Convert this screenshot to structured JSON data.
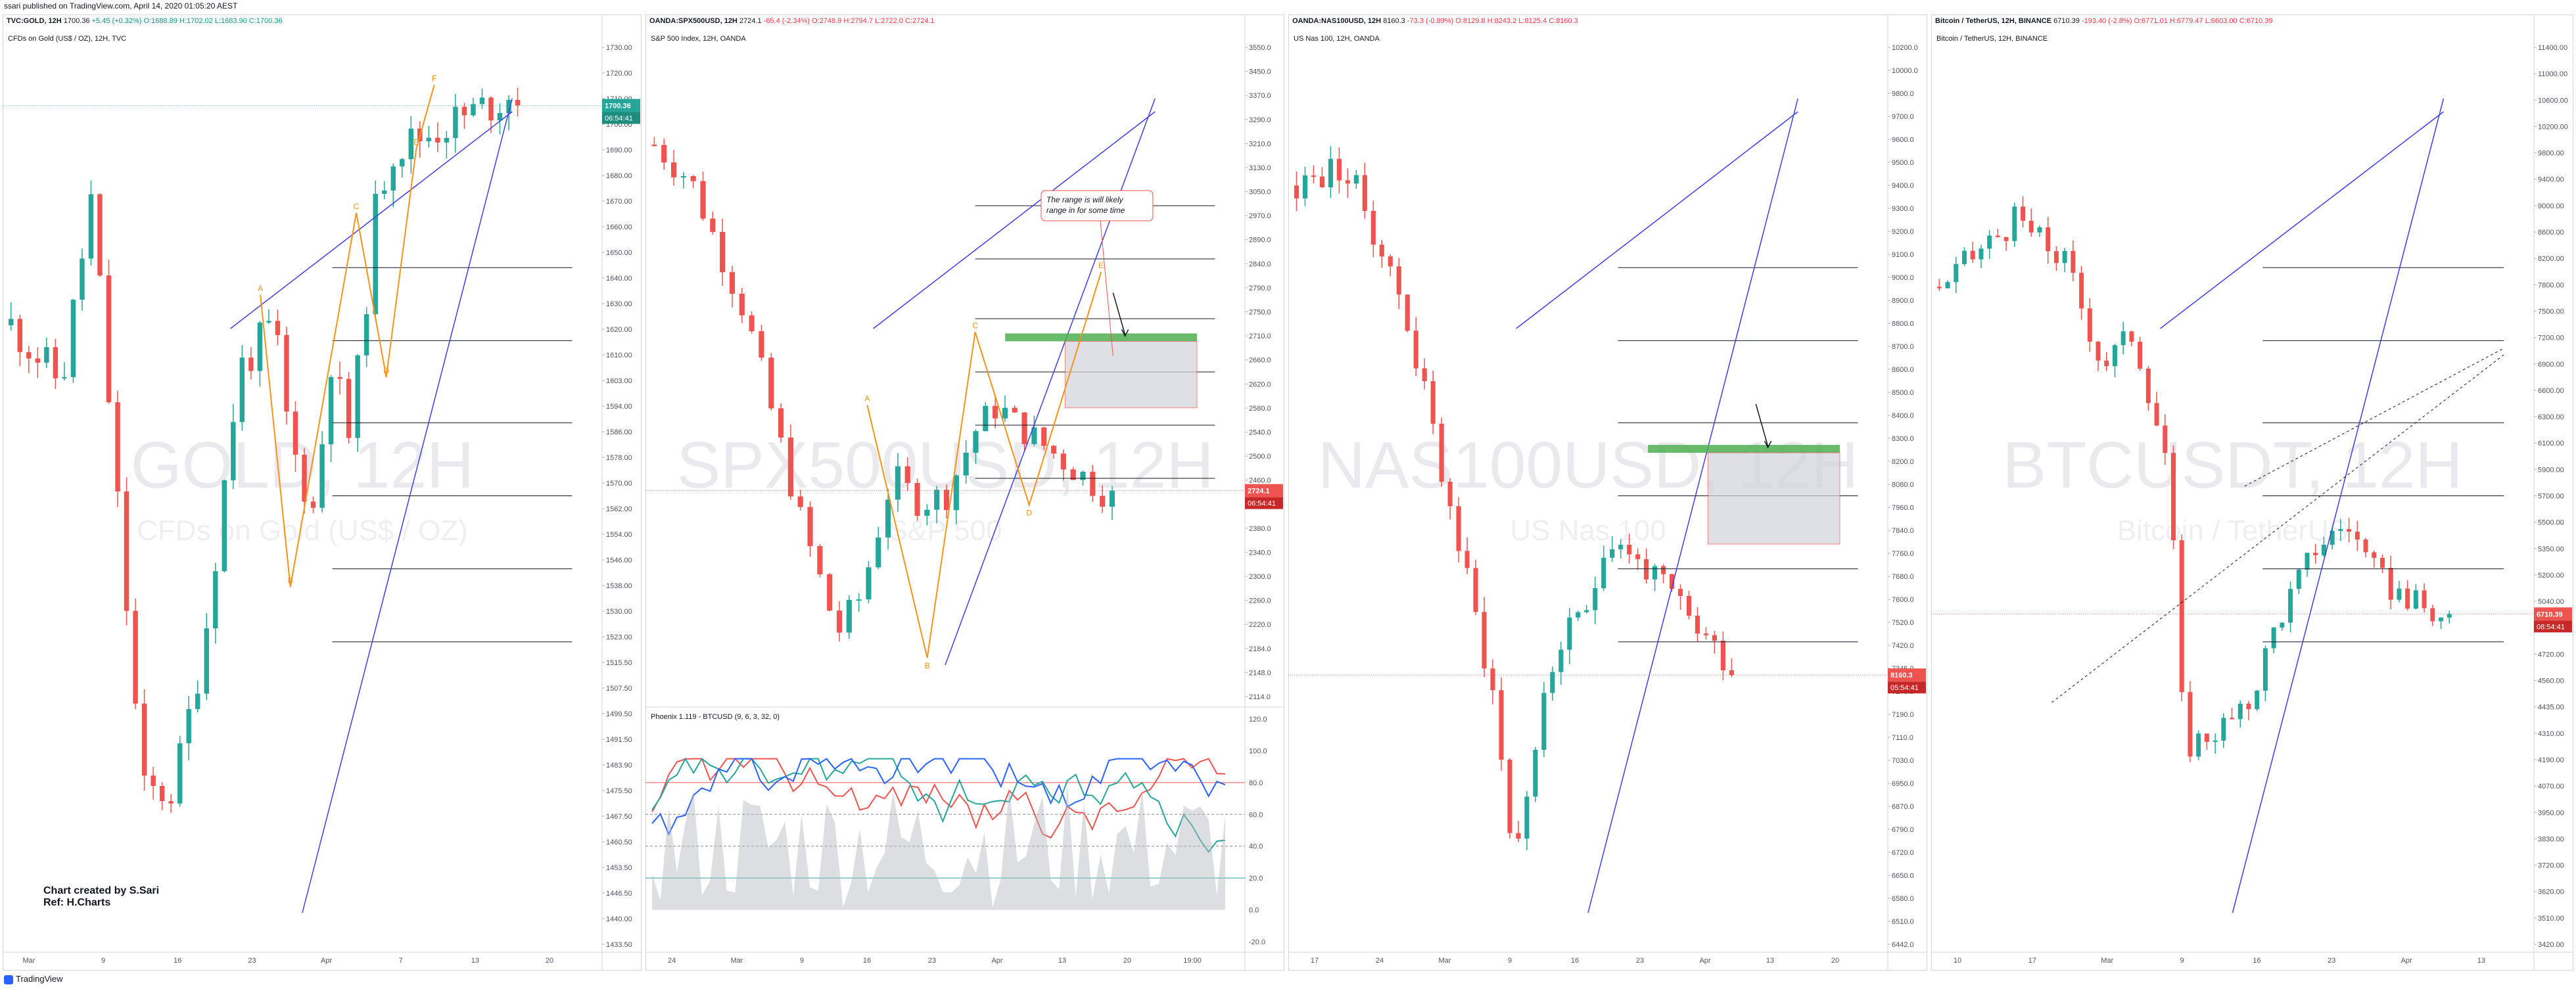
{
  "publisher_line": "ssari published on TradingView.com, April 14, 2020 01:05:20 AEST",
  "footer_brand": "TradingView",
  "colors": {
    "up": "#26a69a",
    "down": "#ef5350",
    "trend": "#3f3fe6",
    "orange": "#f7931a",
    "green_zone": "#4caf50",
    "grey_zone": "#d1d4dc"
  },
  "chart_data": [
    {
      "type": "candlestick",
      "symbol": "TVC:GOLD",
      "interval": "12H",
      "header_quote": {
        "symbol": "TVC:GOLD, 12H",
        "last": "1700.36",
        "change": "+5.45 (+0.32%)",
        "o": "O:1688.89",
        "h": "H:1702.02",
        "l": "L:1683.90",
        "c": "C:1700.36"
      },
      "inner_title": "CFDs on Gold (US$ / OZ), 12H, TVC",
      "watermark": "GOLD, 12H",
      "watermark_sub": "CFDs on Gold (US$ / OZ)",
      "y_ticks": [
        "1730.00",
        "1720.00",
        "1710.00",
        "1700.00",
        "1690.00",
        "1680.00",
        "1670.00",
        "1660.00",
        "1650.00",
        "1640.00",
        "1630.00",
        "1620.00",
        "1610.00",
        "1603.00",
        "1594.00",
        "1586.00",
        "1578.00",
        "1570.00",
        "1562.00",
        "1554.00",
        "1546.00",
        "1538.00",
        "1530.00",
        "1523.00",
        "1515.50",
        "1507.50",
        "1499.50",
        "1491.50",
        "1483.90",
        "1475.50",
        "1467.50",
        "1460.50",
        "1453.50",
        "1446.50",
        "1440.00",
        "1433.50"
      ],
      "x_ticks": [
        "Mar",
        "9",
        "16",
        "23",
        "Apr",
        "7",
        "13",
        "20"
      ],
      "last_price": "1700.36",
      "countdown": "06:54:41",
      "ylim": [
        1425,
        1738
      ],
      "annotations": [
        "A",
        "B",
        "C",
        "D",
        "E",
        "F"
      ],
      "note_line1": "Chart created by S.Sari",
      "note_line2": "Ref: H.Charts"
    },
    {
      "type": "candlestick",
      "symbol": "OANDA:SPX500USD",
      "interval": "12H",
      "header_quote": {
        "symbol": "OANDA:SPX500USD, 12H",
        "last": "2724.1",
        "change": "-65.4 (-2.34%)",
        "o": "O:2748.9",
        "h": "H:2794.7",
        "l": "L:2722.0",
        "c": "C:2724.1"
      },
      "inner_title": "S&P 500 Index, 12H, OANDA",
      "watermark": "SPX500USD, 12H",
      "watermark_sub": "S&P 500",
      "y_ticks": [
        "3550.0",
        "3450.0",
        "3370.0",
        "3290.0",
        "3210.0",
        "3130.0",
        "3050.0",
        "2970.0",
        "2890.0",
        "2840.0",
        "2790.0",
        "2750.0",
        "2710.0",
        "2660.0",
        "2620.0",
        "2580.0",
        "2540.0",
        "2500.0",
        "2460.0",
        "2420.0",
        "2380.0",
        "2340.0",
        "2300.0",
        "2260.0",
        "2220.0",
        "2184.0",
        "2148.0",
        "2114.0"
      ],
      "x_ticks": [
        "24",
        "Mar",
        "9",
        "16",
        "23",
        "Apr",
        "13",
        "20",
        "19:00"
      ],
      "last_price": "2724.1",
      "countdown": "06:54:41",
      "ylim": [
        2090,
        3575
      ],
      "callout": "The range is will likely range in for some time",
      "annotations": [
        "A",
        "B",
        "C",
        "D",
        "E"
      ],
      "indicator": {
        "title": "Phoenix 1.119 - BTCUSD (9, 6, 3, 32, 0)",
        "y_ticks": [
          "120.0",
          "100.0",
          "80.0",
          "60.0",
          "40.0",
          "20.0",
          "0.0",
          "-20.0"
        ],
        "ylim": [
          -25,
          125
        ]
      }
    },
    {
      "type": "candlestick",
      "symbol": "OANDA:NAS100USD",
      "interval": "12H",
      "header_quote": {
        "symbol": "OANDA:NAS100USD, 12H",
        "last": "8160.3",
        "change": "-73.3 (-0.89%)",
        "o": "O:8129.8",
        "h": "H:8243.2",
        "l": "L:8125.4",
        "c": "C:8160.3"
      },
      "inner_title": "US Nas 100, 12H, OANDA",
      "watermark": "NAS100USD, 12H",
      "watermark_sub": "US Nas 100",
      "y_ticks": [
        "10200.0",
        "10000.0",
        "9800.0",
        "9700.0",
        "9600.0",
        "9500.0",
        "9400.0",
        "9300.0",
        "9200.0",
        "9100.0",
        "9000.0",
        "8900.0",
        "8800.0",
        "8700.0",
        "8600.0",
        "8500.0",
        "8400.0",
        "8300.0",
        "8200.0",
        "8080.0",
        "7960.0",
        "7840.0",
        "7760.0",
        "7680.0",
        "7600.0",
        "7520.0",
        "7420.0",
        "7345.0",
        "7270.0",
        "7190.0",
        "7110.0",
        "7030.0",
        "6950.0",
        "6870.0",
        "6790.0",
        "6720.0",
        "6650.0",
        "6580.0",
        "6510.0",
        "6442.0"
      ],
      "x_ticks": [
        "17",
        "24",
        "Mar",
        "9",
        "16",
        "23",
        "Apr",
        "13",
        "20"
      ],
      "last_price": "8160.3",
      "countdown": "05:54:41",
      "ylim": [
        6420,
        10230
      ]
    },
    {
      "type": "candlestick",
      "symbol": "BINANCE:BTCUSDT",
      "interval": "12H",
      "header_quote": {
        "symbol": "Bitcoin / TetherUS, 12H, BINANCE",
        "last": "6710.39",
        "change": "-193.40 (-2.8%)",
        "o": "O:6771.01",
        "h": "H:6779.47",
        "l": "L:6603.00",
        "c": "C:6710.39"
      },
      "inner_title": "Bitcoin / TetherUS, 12H, BINANCE",
      "watermark": "BTCUSDT, 12H",
      "watermark_sub": "Bitcoin / TetherUS",
      "y_ticks": [
        "11400.00",
        "11000.00",
        "10600.00",
        "10200.00",
        "9800.00",
        "9400.00",
        "9000.00",
        "8600.00",
        "8200.00",
        "7800.00",
        "7500.00",
        "7200.00",
        "6900.00",
        "6600.00",
        "6300.00",
        "6100.00",
        "5900.00",
        "5700.00",
        "5500.00",
        "5350.00",
        "5200.00",
        "5040.00",
        "4880.00",
        "4720.00",
        "4560.00",
        "4435.00",
        "4310.00",
        "4190.00",
        "4070.00",
        "3950.00",
        "3830.00",
        "3720.00",
        "3620.00",
        "3510.00",
        "3420.00"
      ],
      "x_ticks": [
        "10",
        "17",
        "Mar",
        "9",
        "16",
        "23",
        "Apr",
        "13"
      ],
      "last_price": "6710.39",
      "countdown": "08:54:41",
      "ylim": [
        3380,
        11500
      ]
    }
  ]
}
